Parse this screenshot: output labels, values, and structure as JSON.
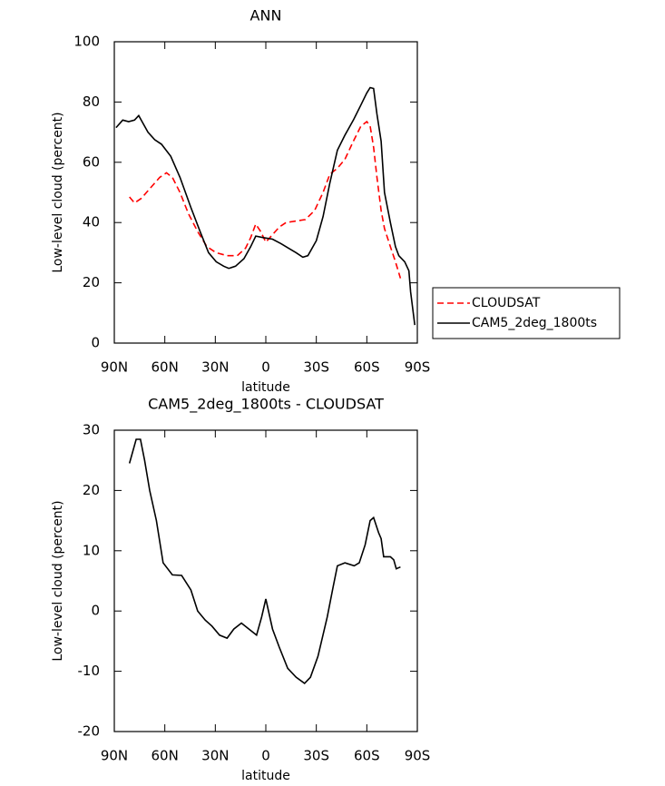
{
  "chart_data": [
    {
      "type": "line",
      "title": "ANN",
      "x_label": "latitude",
      "y_label": "Low-level cloud (percent)",
      "xlim": [
        90,
        -90
      ],
      "xticks": [
        {
          "value": 90,
          "label": "90N"
        },
        {
          "value": 60,
          "label": "60N"
        },
        {
          "value": 30,
          "label": "30N"
        },
        0,
        {
          "value": -30,
          "label": "30S"
        },
        {
          "value": -60,
          "label": "60S"
        },
        {
          "value": -90,
          "label": "90S"
        }
      ],
      "ylim": [
        0,
        100
      ],
      "yticks": [
        0,
        20,
        40,
        60,
        80,
        100
      ],
      "legend": "right",
      "series": [
        {
          "name": "CLOUDSAT",
          "color": "#ff0000",
          "dash": true,
          "x": [
            81,
            78,
            74,
            68.5,
            63,
            59,
            55.5,
            51,
            46,
            40.5,
            35,
            29.5,
            23,
            17,
            12,
            9,
            6,
            3,
            0,
            -4,
            -8,
            -12,
            -18,
            -23.5,
            -29,
            -34,
            -38,
            -42.5,
            -47,
            -52,
            -56.5,
            -60,
            -62,
            -64,
            -66,
            -68.5,
            -70.5,
            -74,
            -77,
            -80
          ],
          "values": [
            48.5,
            46.5,
            48,
            51.5,
            55,
            56.5,
            55,
            50,
            43,
            37,
            32,
            30,
            29,
            29,
            31.5,
            35,
            39.5,
            37,
            33.5,
            36,
            38.5,
            40,
            40.5,
            41,
            44,
            50,
            56,
            58,
            61,
            67,
            72,
            73.5,
            72,
            65,
            55,
            44,
            38,
            32,
            27,
            21.5
          ]
        },
        {
          "name": "CAM5_2deg_1800ts",
          "color": "#000000",
          "dash": false,
          "x": [
            89,
            85,
            81.5,
            78,
            75.5,
            73,
            70,
            66,
            62,
            56.5,
            51,
            44.5,
            39,
            34,
            29.5,
            25,
            22,
            18,
            13,
            9,
            6,
            1.5,
            -4,
            -9,
            -13.5,
            -18,
            -22,
            -25,
            -30,
            -34,
            -38,
            -42.5,
            -47,
            -52,
            -56.5,
            -60,
            -62,
            -64,
            -66,
            -68.5,
            -70.5,
            -74,
            -77,
            -79,
            -82.5,
            -85,
            -86,
            -88.5
          ],
          "values": [
            71.5,
            74,
            73.5,
            74,
            75.5,
            73,
            70,
            67.5,
            66,
            62,
            55,
            45,
            37,
            30,
            27,
            25.5,
            24.8,
            25.5,
            28,
            32,
            35.5,
            35,
            34.5,
            33,
            31.5,
            30,
            28.5,
            29,
            34,
            42,
            53,
            64,
            69,
            74,
            79,
            83,
            84.8,
            84.5,
            76,
            67,
            50,
            40,
            32,
            29,
            27,
            24,
            17,
            6
          ]
        }
      ]
    },
    {
      "type": "line",
      "title": "CAM5_2deg_1800ts - CLOUDSAT",
      "x_label": "latitude",
      "y_label": "Low-level cloud (percent)",
      "xlim": [
        90,
        -90
      ],
      "xticks": [
        {
          "value": 90,
          "label": "90N"
        },
        {
          "value": 60,
          "label": "60N"
        },
        {
          "value": 30,
          "label": "30N"
        },
        0,
        {
          "value": -30,
          "label": "30S"
        },
        {
          "value": -60,
          "label": "60S"
        },
        {
          "value": -90,
          "label": "90S"
        }
      ],
      "ylim": [
        -20,
        30
      ],
      "yticks": [
        -20,
        -10,
        0,
        10,
        20,
        30
      ],
      "series": [
        {
          "color": "#000000",
          "dash": false,
          "x": [
            81,
            77,
            74.5,
            72,
            69,
            65,
            61,
            55.5,
            50,
            44.5,
            40.5,
            36,
            32,
            27.5,
            23,
            19,
            14.5,
            10,
            5.5,
            2.5,
            0,
            -4,
            -8,
            -13,
            -18,
            -23,
            -26.5,
            -31,
            -36.5,
            -40,
            -42.5,
            -47,
            -52.5,
            -55.5,
            -59,
            -62,
            -64,
            -67,
            -68.5,
            -70,
            -74,
            -76,
            -77.5,
            -80
          ],
          "values": [
            24.5,
            28.5,
            28.5,
            25,
            20,
            15,
            8,
            6,
            5.9,
            3.5,
            0,
            -1.5,
            -2.5,
            -4,
            -4.5,
            -3,
            -2,
            -3,
            -4,
            -1,
            2,
            -3,
            -6,
            -9.5,
            -11,
            -12,
            -11,
            -7.5,
            -1,
            4,
            7.5,
            8,
            7.5,
            8,
            11,
            15,
            15.5,
            13,
            12,
            9,
            9,
            8.5,
            7,
            7.3
          ]
        }
      ]
    }
  ]
}
